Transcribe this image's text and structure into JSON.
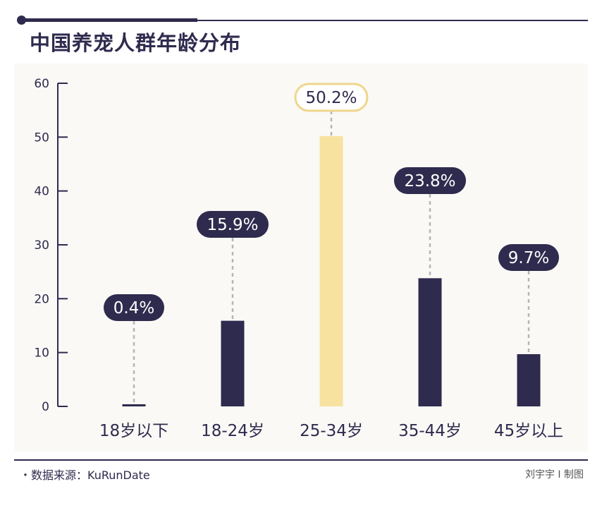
{
  "title": "中国养宠人群年龄分布",
  "footer": {
    "source": "・数据来源：KuRunDate",
    "credit": "刘宇宇 I 制图"
  },
  "colors": {
    "dark": "#2f2b4e",
    "highlight": "#f8e2a0",
    "highlight_border": "#f0d68c",
    "panel": "#faf9f6"
  },
  "chart_data": {
    "type": "bar",
    "categories": [
      "18岁以下",
      "18-24岁",
      "25-34岁",
      "35-44岁",
      "45岁以上"
    ],
    "values": [
      0.4,
      15.9,
      50.2,
      23.8,
      9.7
    ],
    "labels": [
      "0.4%",
      "15.9%",
      "50.2%",
      "23.8%",
      "9.7%"
    ],
    "highlight_index": 2,
    "ylim": [
      0,
      60
    ],
    "yticks": [
      "0",
      "10",
      "20",
      "30",
      "40",
      "50",
      "60"
    ],
    "grid": false,
    "legend": "none"
  }
}
